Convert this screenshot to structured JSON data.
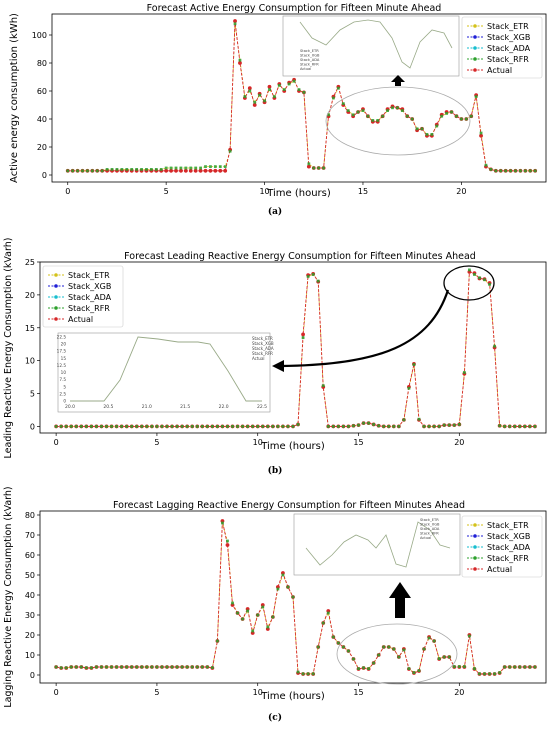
{
  "colors": {
    "etr": "#d4c21a",
    "xgb": "#1f1fd6",
    "ada": "#17becf",
    "rfr": "#2ca02c",
    "actual": "#d62728"
  },
  "chart_data": [
    {
      "type": "line",
      "panel": "(a)",
      "title": "Forecast Active Energy Consumption for Fifteen Minute Ahead",
      "xlabel": "Time (hours)",
      "ylabel": "Active energy consumption (kWh)",
      "xlim": [
        -0.8,
        24.3
      ],
      "ylim": [
        -5,
        115
      ],
      "xticks": [
        0,
        5,
        10,
        15,
        20
      ],
      "yticks": [
        0,
        20,
        40,
        60,
        80,
        100
      ],
      "legend": [
        "Stack_ETR",
        "Stack_XGB",
        "Stack_ADA",
        "Stack_RFR",
        "Actual"
      ],
      "legend_position": "top-right",
      "inset_note": "zoom of 14–21 h region",
      "x": [
        0,
        0.25,
        0.5,
        0.75,
        1,
        1.25,
        1.5,
        1.75,
        2,
        2.25,
        2.5,
        2.75,
        3,
        3.25,
        3.5,
        3.75,
        4,
        4.25,
        4.5,
        4.75,
        5,
        5.25,
        5.5,
        5.75,
        6,
        6.25,
        6.5,
        6.75,
        7,
        7.25,
        7.5,
        7.75,
        8,
        8.25,
        8.5,
        8.75,
        9,
        9.25,
        9.5,
        9.75,
        10,
        10.25,
        10.5,
        10.75,
        11,
        11.25,
        11.5,
        11.75,
        12,
        12.25,
        12.5,
        12.75,
        13,
        13.25,
        13.5,
        13.75,
        14,
        14.25,
        14.5,
        14.75,
        15,
        15.25,
        15.5,
        15.75,
        16,
        16.25,
        16.5,
        16.75,
        17,
        17.25,
        17.5,
        17.75,
        18,
        18.25,
        18.5,
        18.75,
        19,
        19.25,
        19.5,
        19.75,
        20,
        20.25,
        20.5,
        20.75,
        21,
        21.25,
        21.5,
        21.75,
        22,
        22.25,
        22.5,
        22.75,
        23,
        23.25,
        23.5,
        23.75
      ],
      "series": [
        {
          "name": "Actual",
          "values": [
            3,
            3,
            3,
            3,
            3,
            3,
            3,
            3,
            3,
            3,
            3,
            3,
            3,
            3,
            3,
            3,
            3,
            3,
            3,
            3,
            3,
            3,
            3,
            3,
            3,
            3,
            3,
            3,
            3,
            3,
            3,
            3,
            3,
            18,
            110,
            80,
            55,
            62,
            50,
            58,
            52,
            63,
            55,
            65,
            60,
            66,
            68,
            60,
            59,
            6,
            5,
            5,
            5,
            42,
            56,
            63,
            50,
            45,
            42,
            45,
            47,
            42,
            38,
            38,
            42,
            47,
            49,
            48,
            47,
            42,
            40,
            32,
            33,
            28,
            28,
            36,
            43,
            45,
            45,
            42,
            40,
            40,
            42,
            57,
            28,
            6,
            4,
            3,
            3,
            3,
            3,
            3,
            3,
            3,
            3,
            3
          ]
        },
        {
          "name": "Stack_ETR",
          "values": [
            3,
            3,
            3,
            3,
            3,
            3,
            3,
            3,
            4,
            4,
            4,
            4,
            4,
            4,
            4,
            4,
            4,
            4,
            4,
            4,
            5,
            5,
            5,
            5,
            5,
            5,
            5,
            5,
            6,
            6,
            6,
            6,
            6,
            17,
            108,
            82,
            56,
            60,
            52,
            57,
            53,
            61,
            56,
            64,
            61,
            65,
            67,
            61,
            59,
            8,
            5,
            5,
            5,
            43,
            55,
            62,
            51,
            46,
            43,
            45,
            46,
            42,
            39,
            39,
            42,
            46,
            48,
            48,
            46,
            42,
            40,
            33,
            33,
            29,
            29,
            35,
            42,
            44,
            45,
            42,
            40,
            40,
            42,
            56,
            30,
            7,
            4,
            3,
            3,
            3,
            3,
            3,
            3,
            3,
            3,
            3
          ]
        }
      ]
    },
    {
      "type": "line",
      "panel": "(b)",
      "title": "Forecast Leading Reactive Energy Consumption for Fifteen Minutes Ahead",
      "xlabel": "Time (hours)",
      "ylabel": "Leading Reactive Energy Consumption (kVarh)",
      "xlim": [
        -0.8,
        24.3
      ],
      "ylim": [
        -1,
        25
      ],
      "xticks": [
        0,
        5,
        10,
        15,
        20
      ],
      "yticks": [
        0,
        5,
        10,
        15,
        20,
        25
      ],
      "legend": [
        "Stack_ETR",
        "Stack_XGB",
        "Stack_ADA",
        "Stack_RFR",
        "Actual"
      ],
      "legend_position": "top-left",
      "inset_xticks": [
        20.0,
        20.5,
        21.0,
        21.5,
        22.0,
        22.5
      ],
      "inset_yticks": [
        0,
        2.5,
        5.0,
        7.5,
        10.0,
        12.5,
        15.0,
        17.5,
        20.0,
        22.5
      ],
      "x": [
        0,
        0.25,
        0.5,
        0.75,
        1,
        1.25,
        1.5,
        1.75,
        2,
        2.25,
        2.5,
        2.75,
        3,
        3.25,
        3.5,
        3.75,
        4,
        4.25,
        4.5,
        4.75,
        5,
        5.25,
        5.5,
        5.75,
        6,
        6.25,
        6.5,
        6.75,
        7,
        7.25,
        7.5,
        7.75,
        8,
        8.25,
        8.5,
        8.75,
        9,
        9.25,
        9.5,
        9.75,
        10,
        10.25,
        10.5,
        10.75,
        11,
        11.25,
        11.5,
        11.75,
        12,
        12.25,
        12.5,
        12.75,
        13,
        13.25,
        13.5,
        13.75,
        14,
        14.25,
        14.5,
        14.75,
        15,
        15.25,
        15.5,
        15.75,
        16,
        16.25,
        16.5,
        16.75,
        17,
        17.25,
        17.5,
        17.75,
        18,
        18.25,
        18.5,
        18.75,
        19,
        19.25,
        19.5,
        19.75,
        20,
        20.25,
        20.5,
        20.75,
        21,
        21.25,
        21.5,
        21.75,
        22,
        22.25,
        22.5,
        22.75,
        23,
        23.25,
        23.5,
        23.75
      ],
      "series": [
        {
          "name": "Actual",
          "values": [
            0,
            0,
            0,
            0,
            0,
            0,
            0,
            0,
            0,
            0,
            0,
            0,
            0,
            0,
            0,
            0,
            0,
            0,
            0,
            0,
            0,
            0,
            0,
            0,
            0,
            0,
            0,
            0,
            0,
            0,
            0,
            0,
            0,
            0,
            0,
            0,
            0,
            0,
            0,
            0,
            0,
            0,
            0,
            0,
            0,
            0,
            0,
            0,
            0.3,
            14,
            23,
            23.2,
            22,
            6,
            0,
            0,
            0,
            0,
            0,
            0.1,
            0.2,
            0.5,
            0.5,
            0.3,
            0.1,
            0,
            0,
            0,
            0,
            1,
            6,
            9.5,
            1,
            0,
            0,
            0,
            0,
            0.2,
            0.2,
            0.2,
            0.3,
            8,
            23.5,
            23.3,
            22.5,
            22.4,
            21.8,
            12,
            0.1,
            0,
            0,
            0,
            0,
            0,
            0,
            0
          ]
        },
        {
          "name": "Stack_ETR",
          "values": [
            0,
            0,
            0,
            0,
            0,
            0,
            0,
            0,
            0,
            0,
            0,
            0,
            0,
            0,
            0,
            0,
            0,
            0,
            0,
            0,
            0,
            0,
            0,
            0,
            0,
            0,
            0,
            0,
            0,
            0,
            0,
            0,
            0,
            0,
            0,
            0,
            0,
            0,
            0,
            0,
            0,
            0,
            0,
            0,
            0,
            0,
            0,
            0,
            0.3,
            13.5,
            22.8,
            23.1,
            22.1,
            6.2,
            0,
            0,
            0,
            0,
            0,
            0.1,
            0.2,
            0.5,
            0.5,
            0.3,
            0.1,
            0,
            0,
            0,
            0,
            1,
            5.8,
            9.4,
            1.1,
            0,
            0,
            0,
            0,
            0.2,
            0.2,
            0.2,
            0.3,
            8.2,
            23.8,
            23.1,
            22.6,
            22.3,
            21.6,
            12.2,
            0.1,
            0,
            0,
            0,
            0,
            0,
            0,
            0
          ]
        }
      ]
    },
    {
      "type": "line",
      "panel": "(c)",
      "title": "Forecast Lagging Reactive Energy Consumption for Fifteen Minutes Ahead",
      "xlabel": "Time (hours)",
      "ylabel": "Lagging Reactive Energy Consumption (kVarh)",
      "xlim": [
        -0.8,
        24.3
      ],
      "ylim": [
        -4,
        82
      ],
      "xticks": [
        0,
        5,
        10,
        15,
        20
      ],
      "yticks": [
        0,
        10,
        20,
        30,
        40,
        50,
        60,
        70,
        80
      ],
      "legend": [
        "Stack_ETR",
        "Stack_XGB",
        "Stack_ADA",
        "Stack_RFR",
        "Actual"
      ],
      "legend_position": "top-right",
      "inset_note": "zoom of 15–21 h region",
      "x": [
        0,
        0.25,
        0.5,
        0.75,
        1,
        1.25,
        1.5,
        1.75,
        2,
        2.25,
        2.5,
        2.75,
        3,
        3.25,
        3.5,
        3.75,
        4,
        4.25,
        4.5,
        4.75,
        5,
        5.25,
        5.5,
        5.75,
        6,
        6.25,
        6.5,
        6.75,
        7,
        7.25,
        7.5,
        7.75,
        8,
        8.25,
        8.5,
        8.75,
        9,
        9.25,
        9.5,
        9.75,
        10,
        10.25,
        10.5,
        10.75,
        11,
        11.25,
        11.5,
        11.75,
        12,
        12.25,
        12.5,
        12.75,
        13,
        13.25,
        13.5,
        13.75,
        14,
        14.25,
        14.5,
        14.75,
        15,
        15.25,
        15.5,
        15.75,
        16,
        16.25,
        16.5,
        16.75,
        17,
        17.25,
        17.5,
        17.75,
        18,
        18.25,
        18.5,
        18.75,
        19,
        19.25,
        19.5,
        19.75,
        20,
        20.25,
        20.5,
        20.75,
        21,
        21.25,
        21.5,
        21.75,
        22,
        22.25,
        22.5,
        22.75,
        23,
        23.25,
        23.5,
        23.75
      ],
      "series": [
        {
          "name": "Actual",
          "values": [
            4,
            3.5,
            3.5,
            4,
            4,
            4,
            3.5,
            3.5,
            4,
            4,
            4,
            4,
            4,
            4,
            4,
            4,
            4,
            4,
            4,
            4,
            4,
            4,
            4,
            4,
            4,
            4,
            4,
            4,
            4,
            4,
            4,
            3.5,
            17,
            77,
            65,
            35,
            31,
            28,
            33,
            21,
            30,
            35,
            23,
            29,
            44,
            51,
            44,
            39,
            1,
            0.5,
            0.5,
            0.5,
            14,
            26,
            32,
            19,
            16,
            14,
            12,
            8,
            3,
            3.5,
            3,
            6,
            10,
            14,
            14,
            13,
            9,
            13,
            3,
            1,
            2,
            13,
            19,
            17,
            8,
            9,
            9,
            4,
            4,
            4,
            20,
            3,
            0.5,
            0.5,
            0.5,
            0.5,
            1,
            4,
            4,
            4,
            4,
            4,
            4,
            4
          ]
        },
        {
          "name": "Stack_ETR",
          "values": [
            4,
            3.6,
            3.6,
            4,
            4,
            4,
            3.6,
            3.6,
            4,
            4,
            4,
            4,
            4,
            4,
            4,
            4,
            4,
            4,
            4,
            4,
            4,
            4,
            4,
            4,
            4,
            4,
            4,
            4,
            4,
            4,
            4,
            3.7,
            17,
            76,
            67,
            36,
            31,
            28,
            32,
            22,
            30,
            34,
            24,
            29,
            43,
            50,
            44,
            39,
            1.5,
            0.6,
            0.6,
            0.6,
            14,
            26,
            31,
            19,
            16,
            14,
            12,
            8,
            3.2,
            3.6,
            3.2,
            6,
            10,
            14,
            14,
            13,
            9,
            12.5,
            3.2,
            1.2,
            2.2,
            13,
            18.5,
            17,
            8.2,
            9,
            9,
            4.2,
            4.2,
            4.2,
            19.5,
            3.2,
            0.6,
            0.6,
            0.6,
            0.6,
            1.2,
            4,
            4,
            4,
            4,
            4,
            4,
            4
          ]
        }
      ]
    }
  ]
}
